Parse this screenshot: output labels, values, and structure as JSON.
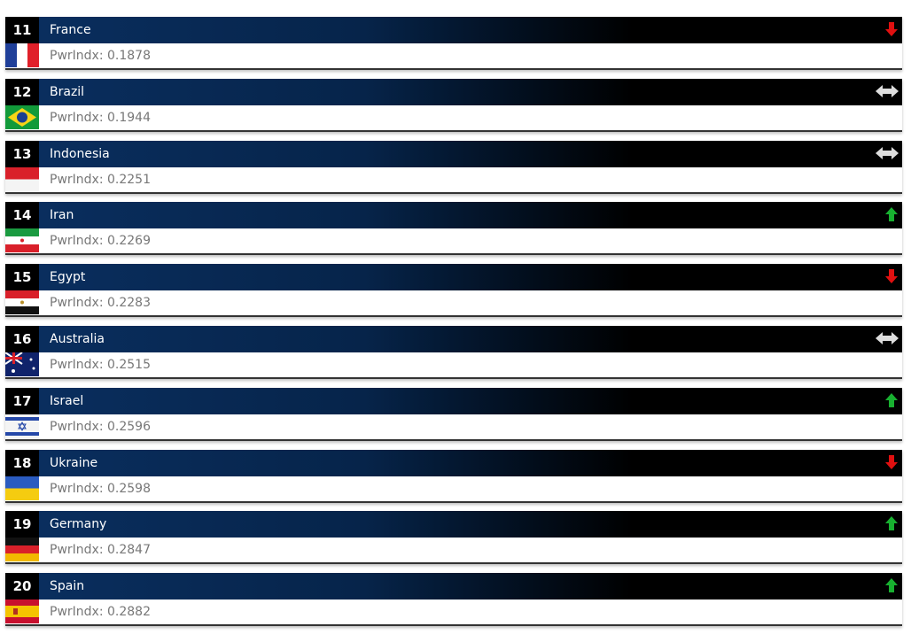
{
  "rows": [
    {
      "rank": "11",
      "country": "France",
      "index": "PwrIndx: 0.1878",
      "trend": "down"
    },
    {
      "rank": "12",
      "country": "Brazil",
      "index": "PwrIndx: 0.1944",
      "trend": "same"
    },
    {
      "rank": "13",
      "country": "Indonesia",
      "index": "PwrIndx: 0.2251",
      "trend": "same"
    },
    {
      "rank": "14",
      "country": "Iran",
      "index": "PwrIndx: 0.2269",
      "trend": "up"
    },
    {
      "rank": "15",
      "country": "Egypt",
      "index": "PwrIndx: 0.2283",
      "trend": "down"
    },
    {
      "rank": "16",
      "country": "Australia",
      "index": "PwrIndx: 0.2515",
      "trend": "same"
    },
    {
      "rank": "17",
      "country": "Israel",
      "index": "PwrIndx: 0.2596",
      "trend": "up"
    },
    {
      "rank": "18",
      "country": "Ukraine",
      "index": "PwrIndx: 0.2598",
      "trend": "down"
    },
    {
      "rank": "19",
      "country": "Germany",
      "index": "PwrIndx: 0.2847",
      "trend": "up"
    },
    {
      "rank": "20",
      "country": "Spain",
      "index": "PwrIndx: 0.2882",
      "trend": "up"
    }
  ]
}
